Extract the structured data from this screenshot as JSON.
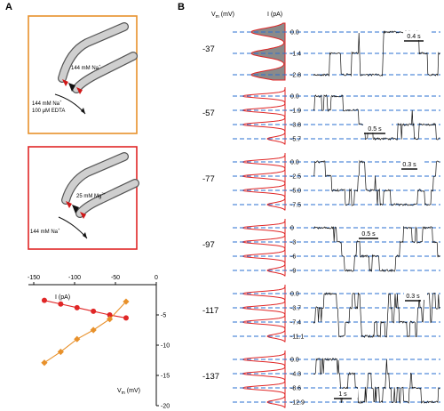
{
  "figure": {
    "panel_a_label": "A",
    "panel_b_label": "B",
    "colors": {
      "orange": "#e8912b",
      "red": "#e02626",
      "blue_dash": "#2a6fd1",
      "hist_fill": "#8a8a8a"
    }
  },
  "panel_a": {
    "diagram_top": {
      "pipette_label": "144 mM Na",
      "pipette_sup": "+",
      "bath_line1": "144 mM Na",
      "bath_line1_sup": "+",
      "bath_line2": "100 μM EDTA",
      "frame_color": "#e8912b"
    },
    "diagram_bottom": {
      "pipette_label": "25 mM Mg",
      "pipette_sup": "2+",
      "bath_line1": "144 mM Na",
      "bath_line1_sup": "+",
      "frame_color": "#e02626"
    },
    "iv_plot": {
      "x_axis_label": "I (pA)",
      "y_axis_label": "V",
      "y_axis_sub": "m",
      "y_axis_unit": " (mV)",
      "x_ticks": [
        "-150",
        "-100",
        "-50",
        "0"
      ],
      "y_ticks": [
        "-5",
        "-10",
        "-15",
        "-20"
      ]
    }
  },
  "panel_b": {
    "vm_header": "V",
    "vm_header_sub": "m",
    "vm_header_unit": " (mV)",
    "i_header": "I (pA)",
    "rows": [
      {
        "vm": "-37",
        "levels": [
          "0.0",
          "-1.4",
          "-2.8"
        ],
        "scale": "0.4 s"
      },
      {
        "vm": "-57",
        "levels": [
          "0.0",
          "-1.9",
          "-3.8",
          "-5.7"
        ],
        "scale": "0.5 s"
      },
      {
        "vm": "-77",
        "levels": [
          "0.0",
          "-2.5",
          "-5.0",
          "-7.5"
        ],
        "scale": "0.3 s"
      },
      {
        "vm": "-97",
        "levels": [
          "0",
          "-3",
          "-6",
          "-9"
        ],
        "scale": "0.5 s"
      },
      {
        "vm": "-117",
        "levels": [
          "0.0",
          "-3.7",
          "-7.4",
          "-11.1"
        ],
        "scale": "0.3 s"
      },
      {
        "vm": "-137",
        "levels": [
          "0.0",
          "-4.3",
          "-8.6",
          "-12.9"
        ],
        "scale": "1 s"
      }
    ]
  },
  "chart_data": [
    {
      "type": "line",
      "title": "",
      "xlabel": "I (pA)",
      "ylabel": "Vm (mV)",
      "xlim": [
        -150,
        0
      ],
      "ylim": [
        -20,
        0
      ],
      "axes_cross_at_origin": true,
      "x_axis_position": "top",
      "series": [
        {
          "color": "#e02626",
          "marker": "circle",
          "x": [
            -137,
            -117,
            -97,
            -77,
            -57,
            -37
          ],
          "y": [
            -2.6,
            -3.2,
            -3.8,
            -4.4,
            -5.0,
            -5.5
          ]
        },
        {
          "color": "#e8912b",
          "marker": "diamond",
          "x": [
            -37,
            -57,
            -77,
            -97,
            -117,
            -137
          ],
          "y": [
            -2.8,
            -5.7,
            -7.5,
            -9.0,
            -11.1,
            -12.9
          ]
        }
      ]
    }
  ]
}
